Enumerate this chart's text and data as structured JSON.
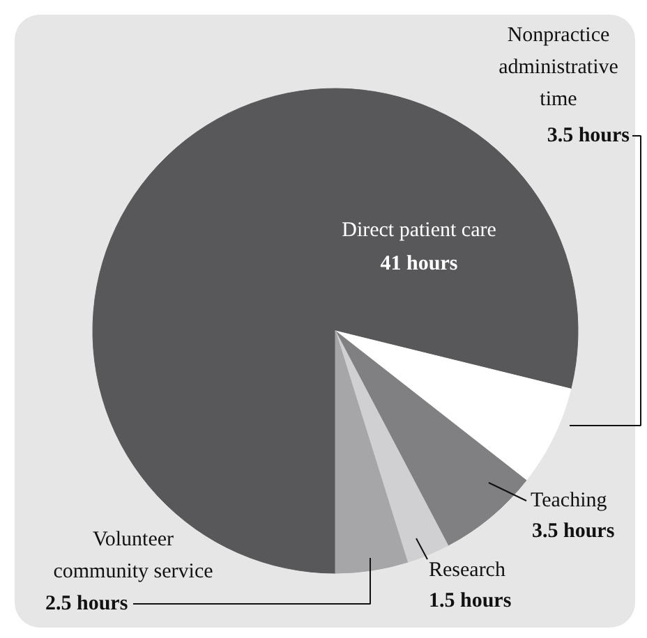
{
  "chart_data": {
    "type": "pie",
    "categories": [
      "Direct patient care",
      "Nonpractice administrative time",
      "Teaching",
      "Research",
      "Volunteer community service"
    ],
    "values": [
      41,
      3.5,
      3.5,
      1.5,
      2.5
    ],
    "value_labels": [
      "41 hours",
      "3.5 hours",
      "3.5 hours",
      "1.5 hours",
      "2.5 hours"
    ],
    "colors": [
      "#58585a",
      "#ffffff",
      "#808082",
      "#d0d0d2",
      "#a6a6a8"
    ]
  }
}
